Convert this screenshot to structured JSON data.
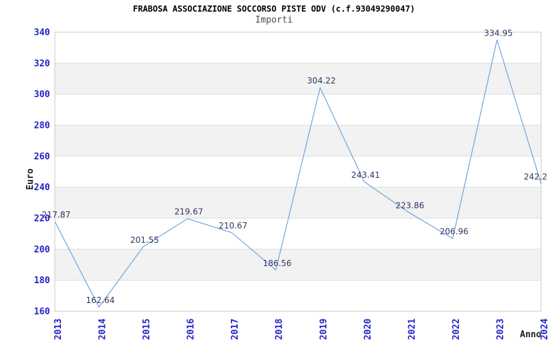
{
  "chart_data": {
    "type": "line",
    "title": "FRABOSA ASSOCIAZIONE SOCCORSO PISTE ODV (c.f.93049290047)",
    "subtitle": "Importi",
    "xlabel": "Anno",
    "ylabel": "Euro",
    "categories": [
      "2013",
      "2014",
      "2015",
      "2016",
      "2017",
      "2018",
      "2019",
      "2020",
      "2021",
      "2022",
      "2023",
      "2024"
    ],
    "series": [
      {
        "name": "Importi",
        "values": [
          217.87,
          162.64,
          201.55,
          219.67,
          210.67,
          186.56,
          304.22,
          243.41,
          223.86,
          206.96,
          334.95,
          242.2
        ]
      }
    ],
    "point_labels": [
      "217.87",
      "162.64",
      "201.55",
      "219.67",
      "210.67",
      "186.56",
      "304.22",
      "243.41",
      "223.86",
      "206.96",
      "334.95",
      "242.2"
    ],
    "ylim": [
      160,
      340
    ],
    "ytick_step": 20,
    "ytick_labels": [
      "160",
      "180",
      "200",
      "220",
      "240",
      "260",
      "280",
      "300",
      "320",
      "340"
    ],
    "grid": "alternating horizontal bands with light gridlines",
    "legend_position": "none",
    "colors": {
      "line": "#6EA4E0",
      "tick_label": "#2222CC",
      "data_label": "#333366",
      "band": "#F2F2F2",
      "band_alt": "#FFFFFF",
      "grid_line": "#DCDCDC",
      "plot_border": "#C9C9C9",
      "title": "#000000",
      "subtitle": "#4A4A4A",
      "axis_title": "#1A1A1A",
      "background": "#FFFFFF"
    }
  }
}
